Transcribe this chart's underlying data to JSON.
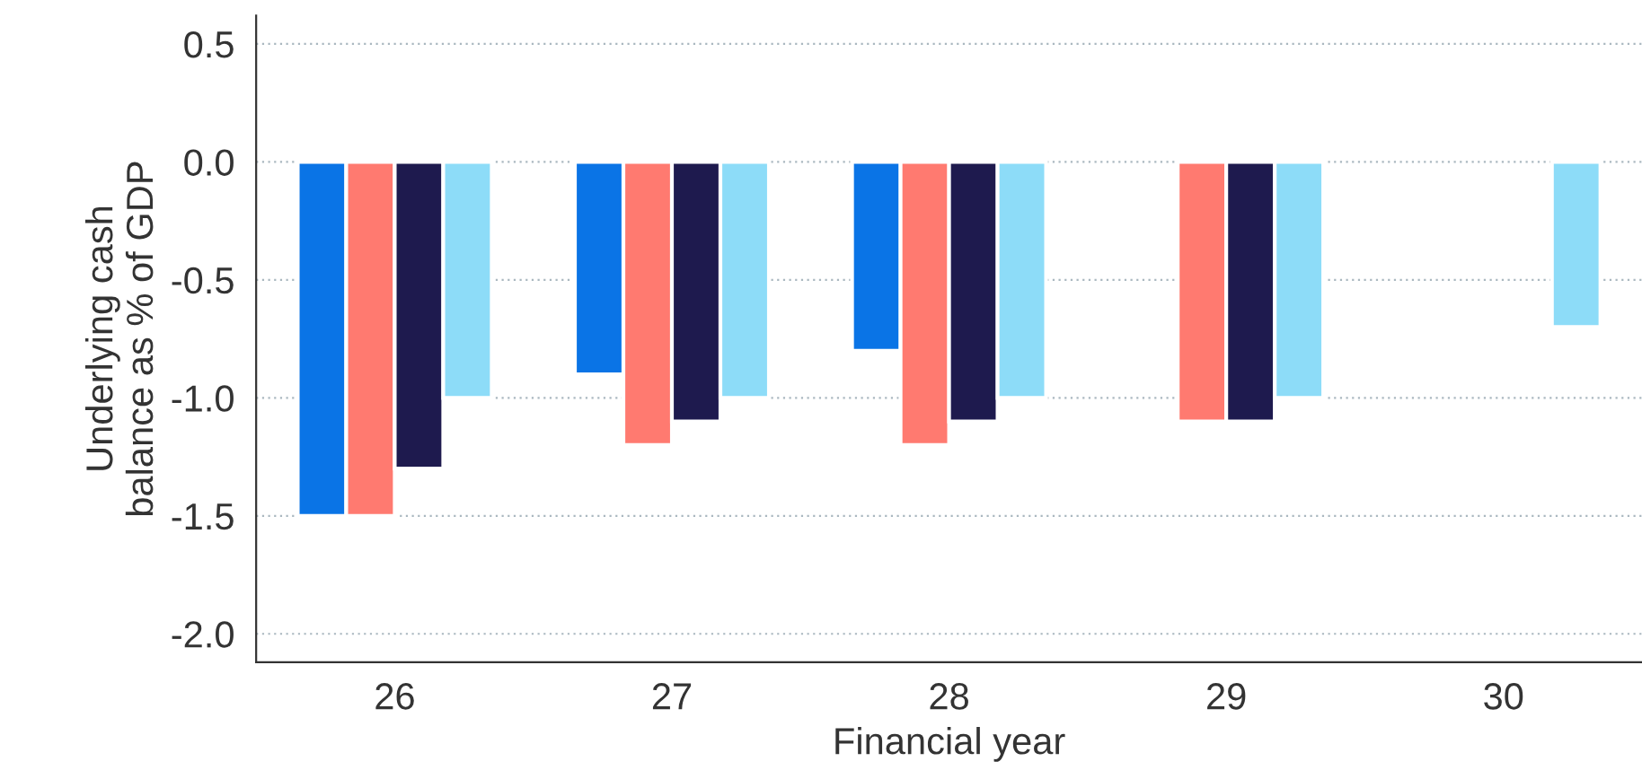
{
  "chart_data": {
    "type": "bar",
    "xlabel": "Financial year",
    "ylabel": "Underlying cash\nbalance as % of GDP",
    "categories": [
      "26",
      "27",
      "28",
      "29",
      "30"
    ],
    "series": [
      {
        "color": "#0a74e6",
        "values": [
          -1.5,
          -0.9,
          -0.8,
          null,
          null
        ]
      },
      {
        "color": "#ff7a70",
        "values": [
          -1.5,
          -1.2,
          -1.2,
          -1.1,
          null
        ]
      },
      {
        "color": "#1e1a4e",
        "values": [
          -1.3,
          -1.1,
          -1.1,
          -1.1,
          null
        ]
      },
      {
        "color": "#8ddcf8",
        "values": [
          -1.0,
          -1.0,
          -1.0,
          -1.0,
          -0.7
        ]
      }
    ],
    "ylim": [
      -2.12,
      0.62
    ],
    "yticks": [
      {
        "value": -2,
        "label": "-2.0"
      },
      {
        "value": -1.5,
        "label": "-1.5"
      },
      {
        "value": -1,
        "label": "-1.0"
      },
      {
        "value": -0.5,
        "label": "-0.5"
      },
      {
        "value": 0,
        "label": "0.0"
      },
      {
        "value": 0.5,
        "label": "0.5"
      }
    ],
    "grid": "y"
  }
}
